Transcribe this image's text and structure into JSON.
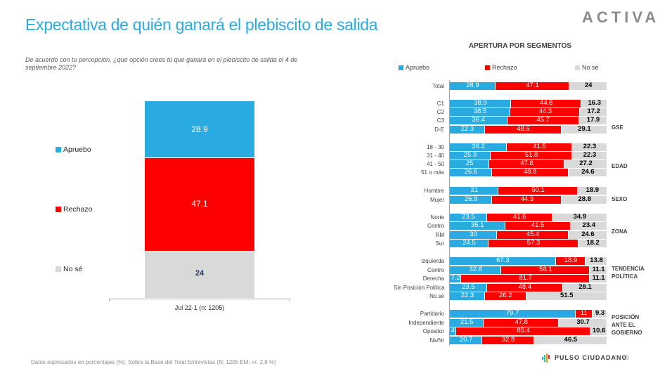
{
  "header": {
    "title": "Expectativa de quién ganará el plebiscito de salida",
    "logo": "ACTIVA",
    "question": "De acuerdo con tu percepción, ¿qué opción crees tú que ganará en el plebiscito de salida el 4 de septiembre 2022?"
  },
  "colors": {
    "apruebo": "#29abe2",
    "rechazo": "#ff0000",
    "nose": "#d9d9d9",
    "title": "#29abe2"
  },
  "chart_data": [
    {
      "type": "bar",
      "stacked": true,
      "orientation": "vertical",
      "title": "",
      "categories": [
        "Jul 22-1 (n: 1205)"
      ],
      "series": [
        {
          "name": "Apruebo",
          "values": [
            28.9
          ]
        },
        {
          "name": "Rechazo",
          "values": [
            47.1
          ]
        },
        {
          "name": "No sé",
          "values": [
            24
          ]
        }
      ],
      "legend": "left",
      "xlabel": "",
      "ylabel": "",
      "ylim": [
        0,
        100
      ]
    },
    {
      "type": "bar",
      "stacked": true,
      "orientation": "horizontal",
      "title": "APERTURA POR SEGMENTOS",
      "legend_labels": [
        "Apruebo",
        "Rechazo",
        "No sé"
      ],
      "legend": "top",
      "xlim": [
        0,
        100
      ],
      "groups": [
        {
          "name": "",
          "rows": [
            {
              "label": "Total",
              "values": [
                28.9,
                47.1,
                24
              ]
            }
          ]
        },
        {
          "name": "GSE",
          "rows": [
            {
              "label": "C1",
              "values": [
                38.9,
                44.8,
                16.3
              ]
            },
            {
              "label": "C2",
              "values": [
                38.5,
                44.3,
                17.2
              ]
            },
            {
              "label": "C3",
              "values": [
                36.4,
                45.7,
                17.9
              ]
            },
            {
              "label": "D-E",
              "values": [
                22.3,
                48.6,
                29.1
              ]
            }
          ]
        },
        {
          "name": "EDAD",
          "rows": [
            {
              "label": "18 - 30",
              "values": [
                36.2,
                41.5,
                22.3
              ]
            },
            {
              "label": "31 - 40",
              "values": [
                25.9,
                51.8,
                22.3
              ]
            },
            {
              "label": "41 - 50",
              "values": [
                25,
                47.8,
                27.2
              ]
            },
            {
              "label": "51 o más",
              "values": [
                26.6,
                48.8,
                24.6
              ]
            }
          ]
        },
        {
          "name": "SEXO",
          "rows": [
            {
              "label": "Hombre",
              "values": [
                31,
                50.1,
                18.9
              ]
            },
            {
              "label": "Mujer",
              "values": [
                26.9,
                44.3,
                28.8
              ]
            }
          ]
        },
        {
          "name": "ZONA",
          "rows": [
            {
              "label": "Norte",
              "values": [
                23.5,
                41.6,
                34.9
              ]
            },
            {
              "label": "Centro",
              "values": [
                35.1,
                41.5,
                23.4
              ]
            },
            {
              "label": "RM",
              "values": [
                30,
                45.4,
                24.6
              ]
            },
            {
              "label": "Sur",
              "values": [
                24.5,
                57.3,
                18.2
              ]
            }
          ]
        },
        {
          "name": "TENDENCIA POLÍTICA",
          "rows": [
            {
              "label": "Izquierda",
              "values": [
                67.3,
                18.9,
                13.8
              ]
            },
            {
              "label": "Centro",
              "values": [
                32.8,
                56.1,
                11.1
              ]
            },
            {
              "label": "Derecha",
              "values": [
                7.2,
                81.7,
                11.1
              ]
            },
            {
              "label": "Sin Posición Política",
              "values": [
                23.5,
                48.4,
                28.1
              ]
            },
            {
              "label": "No sé",
              "values": [
                22.3,
                26.2,
                51.5
              ]
            }
          ]
        },
        {
          "name": "POSICIÓN ANTE EL GOBIERNO",
          "rows": [
            {
              "label": "Partidario",
              "values": [
                79.7,
                11,
                9.3
              ]
            },
            {
              "label": "Independiente",
              "values": [
                21.5,
                47.8,
                30.7
              ]
            },
            {
              "label": "Opositor",
              "values": [
                4,
                85.4,
                10.6
              ]
            },
            {
              "label": "Ns/Nr",
              "values": [
                20.7,
                32.8,
                46.5
              ]
            }
          ]
        }
      ]
    }
  ],
  "footer": {
    "note": "Datos expresados en porcentajes (%). Sobre la Base del Total Entrevistas (N: 1205  EM: +/- 2,8 %)",
    "brand": "PULSO CIUDADANO",
    "separator": "|",
    "page": "43"
  }
}
